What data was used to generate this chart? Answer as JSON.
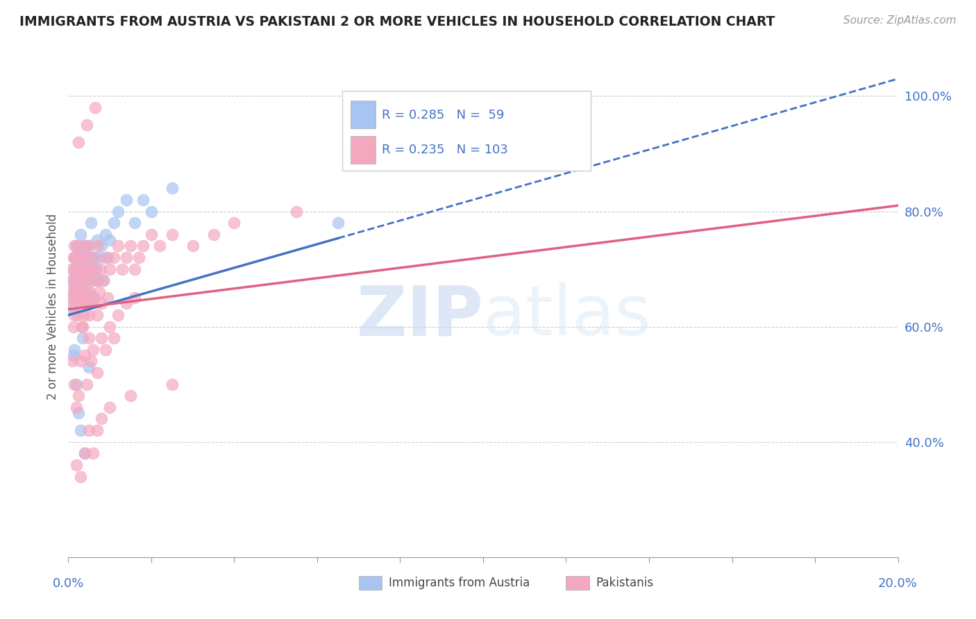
{
  "title": "IMMIGRANTS FROM AUSTRIA VS PAKISTANI 2 OR MORE VEHICLES IN HOUSEHOLD CORRELATION CHART",
  "source": "Source: ZipAtlas.com",
  "ylabel": "2 or more Vehicles in Household",
  "blue_R": 0.285,
  "blue_N": 59,
  "pink_R": 0.235,
  "pink_N": 103,
  "blue_color": "#a8c4f0",
  "pink_color": "#f4a8c0",
  "blue_line_color": "#4472c4",
  "pink_line_color": "#e06080",
  "legend_label_blue": "Immigrants from Austria",
  "legend_label_pink": "Pakistanis",
  "watermark_zip": "ZIP",
  "watermark_atlas": "atlas",
  "xlim": [
    0.0,
    20.0
  ],
  "ylim": [
    20.0,
    107.0
  ],
  "y_ticks": [
    40.0,
    60.0,
    80.0,
    100.0
  ],
  "blue_trend_x0": 0.0,
  "blue_trend_y0": 62.0,
  "blue_trend_x1": 20.0,
  "blue_trend_y1": 103.0,
  "blue_solid_end": 6.5,
  "pink_trend_x0": 0.0,
  "pink_trend_y0": 63.0,
  "pink_trend_x1": 20.0,
  "pink_trend_y1": 81.0,
  "blue_scatter_x": [
    0.05,
    0.08,
    0.1,
    0.12,
    0.13,
    0.15,
    0.15,
    0.18,
    0.2,
    0.22,
    0.23,
    0.25,
    0.28,
    0.3,
    0.3,
    0.32,
    0.33,
    0.35,
    0.35,
    0.38,
    0.4,
    0.4,
    0.42,
    0.45,
    0.45,
    0.48,
    0.5,
    0.5,
    0.52,
    0.55,
    0.58,
    0.6,
    0.62,
    0.65,
    0.68,
    0.7,
    0.72,
    0.75,
    0.8,
    0.85,
    0.9,
    0.95,
    1.0,
    1.1,
    1.2,
    1.4,
    1.6,
    1.8,
    2.0,
    2.5,
    0.15,
    0.2,
    0.25,
    0.3,
    0.35,
    0.4,
    0.5,
    0.55,
    6.5
  ],
  "blue_scatter_y": [
    65.0,
    63.0,
    68.0,
    70.0,
    55.0,
    67.0,
    72.0,
    66.0,
    74.0,
    69.0,
    71.0,
    65.0,
    73.0,
    68.0,
    76.0,
    70.0,
    64.0,
    72.0,
    66.0,
    70.0,
    68.0,
    74.0,
    65.0,
    72.0,
    68.0,
    70.0,
    64.0,
    74.0,
    66.0,
    70.0,
    72.0,
    68.0,
    65.0,
    72.0,
    70.0,
    75.0,
    68.0,
    72.0,
    74.0,
    68.0,
    76.0,
    72.0,
    75.0,
    78.0,
    80.0,
    82.0,
    78.0,
    82.0,
    80.0,
    84.0,
    56.0,
    50.0,
    45.0,
    42.0,
    58.0,
    38.0,
    53.0,
    78.0,
    78.0
  ],
  "pink_scatter_x": [
    0.05,
    0.08,
    0.1,
    0.1,
    0.12,
    0.12,
    0.14,
    0.15,
    0.15,
    0.18,
    0.18,
    0.2,
    0.2,
    0.22,
    0.22,
    0.24,
    0.25,
    0.25,
    0.27,
    0.28,
    0.3,
    0.3,
    0.32,
    0.32,
    0.33,
    0.35,
    0.35,
    0.37,
    0.38,
    0.4,
    0.4,
    0.42,
    0.43,
    0.45,
    0.45,
    0.47,
    0.48,
    0.5,
    0.5,
    0.52,
    0.55,
    0.55,
    0.58,
    0.6,
    0.63,
    0.65,
    0.68,
    0.7,
    0.72,
    0.75,
    0.78,
    0.8,
    0.85,
    0.9,
    0.95,
    1.0,
    1.1,
    1.2,
    1.3,
    1.4,
    1.5,
    1.6,
    1.7,
    1.8,
    2.0,
    2.2,
    2.5,
    3.0,
    3.5,
    4.0,
    0.1,
    0.15,
    0.2,
    0.25,
    0.3,
    0.35,
    0.4,
    0.45,
    0.5,
    0.55,
    0.6,
    0.7,
    0.8,
    0.9,
    1.0,
    1.1,
    1.2,
    1.4,
    1.6,
    5.5,
    0.2,
    0.3,
    0.4,
    0.5,
    0.6,
    0.7,
    0.8,
    1.0,
    1.5,
    2.5,
    0.25,
    0.45,
    0.65
  ],
  "pink_scatter_y": [
    66.0,
    70.0,
    64.0,
    68.0,
    72.0,
    60.0,
    66.0,
    74.0,
    62.0,
    68.0,
    72.0,
    65.0,
    70.0,
    68.0,
    62.0,
    74.0,
    66.0,
    70.0,
    64.0,
    68.0,
    72.0,
    65.0,
    70.0,
    60.0,
    66.0,
    72.0,
    65.0,
    68.0,
    62.0,
    74.0,
    66.0,
    70.0,
    64.0,
    68.0,
    72.0,
    65.0,
    70.0,
    62.0,
    74.0,
    66.0,
    70.0,
    64.0,
    68.0,
    72.0,
    65.0,
    70.0,
    68.0,
    62.0,
    74.0,
    66.0,
    70.0,
    64.0,
    68.0,
    72.0,
    65.0,
    70.0,
    72.0,
    74.0,
    70.0,
    72.0,
    74.0,
    70.0,
    72.0,
    74.0,
    76.0,
    74.0,
    76.0,
    74.0,
    76.0,
    78.0,
    54.0,
    50.0,
    46.0,
    48.0,
    54.0,
    60.0,
    55.0,
    50.0,
    58.0,
    54.0,
    56.0,
    52.0,
    58.0,
    56.0,
    60.0,
    58.0,
    62.0,
    64.0,
    65.0,
    80.0,
    36.0,
    34.0,
    38.0,
    42.0,
    38.0,
    42.0,
    44.0,
    46.0,
    48.0,
    50.0,
    92.0,
    95.0,
    98.0
  ]
}
